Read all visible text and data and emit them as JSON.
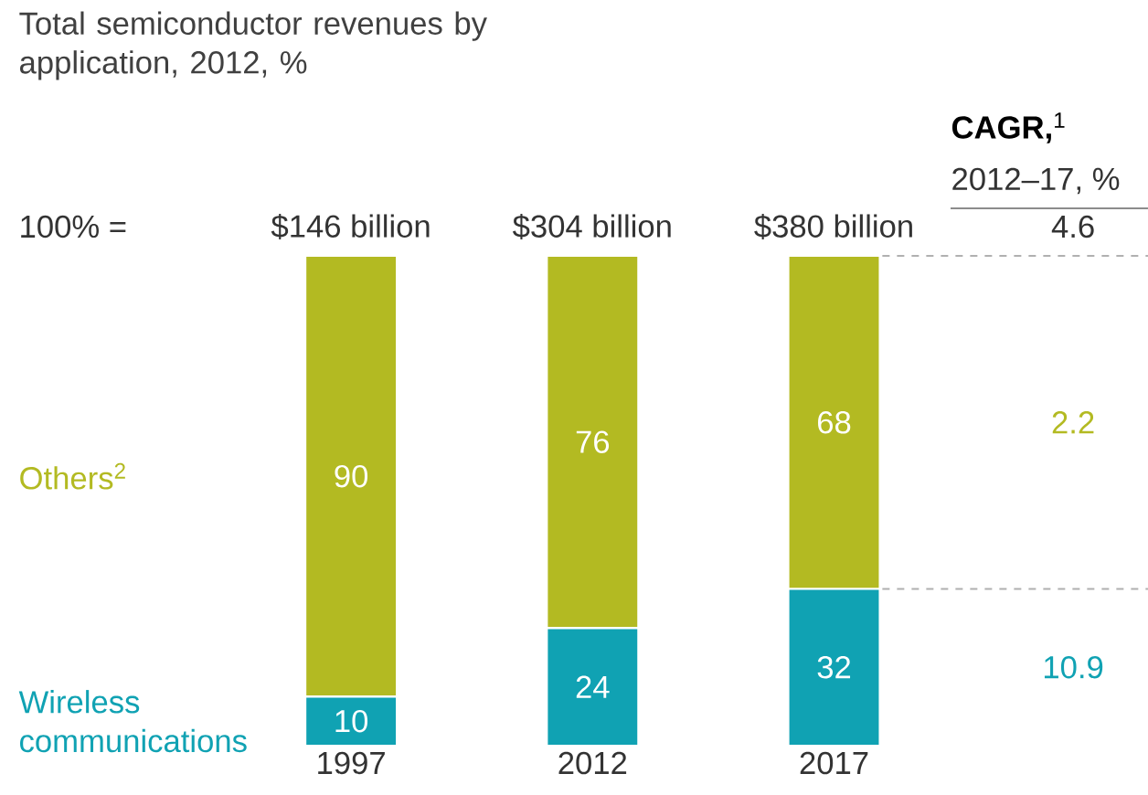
{
  "chart_data": {
    "type": "bar",
    "stacked": true,
    "title": "Total semiconductor revenues by application, 2012, %",
    "categories": [
      "1997",
      "2012",
      "2017"
    ],
    "series": [
      {
        "name": "Wireless communications",
        "color": "#10a2b3",
        "values": [
          10,
          24,
          32
        ]
      },
      {
        "name": "Others$^{2}$",
        "color": "#b3ba22",
        "values": [
          90,
          76,
          68
        ]
      }
    ],
    "data_labels": true,
    "ref_lines": [
      {
        "axis": "y",
        "value": 100,
        "color": "#b0b0b0",
        "line_style": "dashed"
      },
      {
        "axis": "y",
        "value": 32,
        "color": "#b0b0b0",
        "line_style": "dashed"
      }
    ],
    "annotations": [
      "100% =",
      "$146 billion",
      "$304 billion",
      "$380 billion",
      "**CAGR,**$^{1}$",
      "2012–17, %",
      "4.6",
      "2.2",
      "10.9"
    ]
  }
}
